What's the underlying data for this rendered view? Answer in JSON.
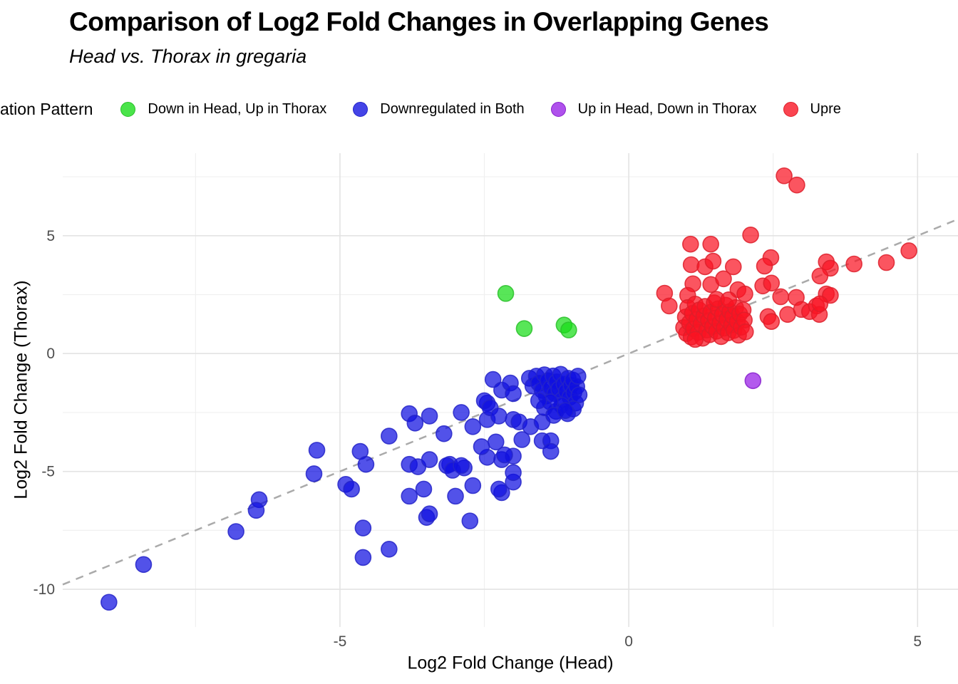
{
  "title": "Comparison of Log2 Fold Changes in Overlapping Genes",
  "subtitle": "Head vs. Thorax in gregaria",
  "legend": {
    "title": "ation Pattern",
    "items": [
      {
        "label": "Down in Head, Up in Thorax",
        "color": "#4ae44a",
        "stroke": "#2abf2a"
      },
      {
        "label": "Downregulated in Both",
        "color": "#4444e7",
        "stroke": "#2525c8"
      },
      {
        "label": "Up in Head, Down in Thorax",
        "color": "#af51ec",
        "stroke": "#8822cc"
      },
      {
        "label": "Upre",
        "color": "#fa4450",
        "stroke": "#dd1f2a"
      }
    ]
  },
  "chart_data": {
    "type": "scatter",
    "title": "Comparison of Log2 Fold Changes in Overlapping Genes",
    "subtitle": "Head vs. Thorax in gregaria",
    "xlabel": "Log2 Fold Change (Head)",
    "ylabel": "Log2 Fold Change (Thorax)",
    "xlim": [
      -9.8,
      5.7
    ],
    "ylim": [
      -11.6,
      8.5
    ],
    "x_ticks": [
      -5,
      0,
      5
    ],
    "y_ticks": [
      5,
      0,
      -5,
      -10
    ],
    "x_minor_ticks": [
      -7.5,
      -2.5,
      2.5
    ],
    "y_minor_ticks": [
      7.5,
      2.5,
      -2.5,
      -7.5
    ],
    "grid": {
      "major_color": "#e3e3e3",
      "minor_color": "#f0f0f0"
    },
    "abline": {
      "slope": 1,
      "intercept": 0,
      "color": "#aaaaaa",
      "dash": "11 9",
      "width": 2.5
    },
    "point_radius": 11,
    "legend_position": "top",
    "series": [
      {
        "name": "Down in Head, Up in Thorax",
        "color": "#17dd17",
        "stroke": "#2abf2a",
        "opacity": 0.72,
        "points": [
          [
            -2.13,
            2.55
          ],
          [
            -1.81,
            1.06
          ],
          [
            -1.12,
            1.21
          ],
          [
            -1.04,
            1.0
          ]
        ]
      },
      {
        "name": "Downregulated in Both",
        "color": "#0f0fe0",
        "stroke": "#2525c8",
        "opacity": 0.72,
        "points": [
          [
            -9.0,
            -10.55
          ],
          [
            -8.4,
            -8.95
          ],
          [
            -6.8,
            -7.55
          ],
          [
            -6.4,
            -6.2
          ],
          [
            -6.45,
            -6.65
          ],
          [
            -5.4,
            -4.1
          ],
          [
            -5.45,
            -5.1
          ],
          [
            -4.65,
            -4.15
          ],
          [
            -4.55,
            -4.7
          ],
          [
            -4.9,
            -5.55
          ],
          [
            -4.8,
            -5.75
          ],
          [
            -4.6,
            -7.4
          ],
          [
            -4.6,
            -8.65
          ],
          [
            -4.15,
            -8.3
          ],
          [
            -4.15,
            -3.5
          ],
          [
            -3.8,
            -2.55
          ],
          [
            -3.7,
            -2.95
          ],
          [
            -3.45,
            -2.65
          ],
          [
            -3.2,
            -3.4
          ],
          [
            -3.8,
            -6.05
          ],
          [
            -3.55,
            -5.75
          ],
          [
            -3.5,
            -6.95
          ],
          [
            -3.45,
            -6.8
          ],
          [
            -3.0,
            -6.05
          ],
          [
            -2.7,
            -5.6
          ],
          [
            -2.75,
            -7.1
          ],
          [
            -3.1,
            -4.7
          ],
          [
            -2.85,
            -4.85
          ],
          [
            -3.8,
            -4.7
          ],
          [
            -3.65,
            -4.8
          ],
          [
            -3.45,
            -4.5
          ],
          [
            -3.15,
            -4.75
          ],
          [
            -3.05,
            -4.95
          ],
          [
            -2.9,
            -4.75
          ],
          [
            -2.45,
            -4.4
          ],
          [
            -2.2,
            -4.5
          ],
          [
            -2.0,
            -4.35
          ],
          [
            -2.15,
            -4.3
          ],
          [
            -2.2,
            -5.9
          ],
          [
            -2.0,
            -5.45
          ],
          [
            -2.0,
            -5.05
          ],
          [
            -2.25,
            -5.75
          ],
          [
            -2.35,
            -1.1
          ],
          [
            -2.2,
            -1.55
          ],
          [
            -2.05,
            -1.25
          ],
          [
            -2.0,
            -1.7
          ],
          [
            -2.45,
            -2.1
          ],
          [
            -2.5,
            -2.0
          ],
          [
            -2.45,
            -2.8
          ],
          [
            -2.4,
            -2.3
          ],
          [
            -2.9,
            -2.5
          ],
          [
            -2.7,
            -3.1
          ],
          [
            -2.25,
            -2.65
          ],
          [
            -2.0,
            -2.8
          ],
          [
            -1.9,
            -2.9
          ],
          [
            -1.7,
            -3.1
          ],
          [
            -1.5,
            -2.9
          ],
          [
            -2.55,
            -3.95
          ],
          [
            -2.3,
            -3.75
          ],
          [
            -1.85,
            -3.65
          ],
          [
            -1.5,
            -3.7
          ],
          [
            -1.35,
            -3.7
          ],
          [
            -1.35,
            -4.15
          ],
          [
            -1.72,
            -1.05
          ],
          [
            -1.66,
            -1.38
          ],
          [
            -1.6,
            -0.96
          ],
          [
            -1.56,
            -1.26
          ],
          [
            -1.5,
            -1.56
          ],
          [
            -1.46,
            -0.9
          ],
          [
            -1.43,
            -1.8
          ],
          [
            -1.4,
            -1.15
          ],
          [
            -1.35,
            -1.45
          ],
          [
            -1.31,
            -0.95
          ],
          [
            -1.28,
            -1.7
          ],
          [
            -1.25,
            -1.2
          ],
          [
            -1.21,
            -1.5
          ],
          [
            -1.18,
            -0.88
          ],
          [
            -1.15,
            -1.95
          ],
          [
            -1.12,
            -1.3
          ],
          [
            -1.08,
            -1.6
          ],
          [
            -1.05,
            -1.05
          ],
          [
            -1.02,
            -1.85
          ],
          [
            -1.0,
            -1.35
          ],
          [
            -0.97,
            -1.12
          ],
          [
            -0.95,
            -1.65
          ],
          [
            -0.92,
            -2.1
          ],
          [
            -0.9,
            -1.4
          ],
          [
            -0.88,
            -0.96
          ],
          [
            -0.86,
            -1.75
          ],
          [
            -0.96,
            -2.35
          ],
          [
            -1.06,
            -2.55
          ],
          [
            -1.16,
            -2.2
          ],
          [
            -1.26,
            -2.45
          ],
          [
            -1.36,
            -2.05
          ],
          [
            -1.46,
            -2.3
          ],
          [
            -1.56,
            -2.0
          ],
          [
            -1.3,
            -2.62
          ],
          [
            -1.1,
            -2.42
          ]
        ]
      },
      {
        "name": "Up in Head, Down in Thorax",
        "color": "#9d2be8",
        "stroke": "#8822cc",
        "opacity": 0.78,
        "points": [
          [
            2.15,
            -1.15
          ]
        ]
      },
      {
        "name": "Upregulated in Both",
        "color": "#fa1423",
        "stroke": "#dd1f2a",
        "opacity": 0.72,
        "points": [
          [
            2.69,
            7.54
          ],
          [
            2.91,
            7.15
          ],
          [
            1.07,
            4.64
          ],
          [
            1.42,
            4.64
          ],
          [
            2.11,
            5.03
          ],
          [
            2.46,
            4.07
          ],
          [
            2.35,
            3.71
          ],
          [
            1.08,
            3.77
          ],
          [
            1.32,
            3.68
          ],
          [
            1.46,
            3.92
          ],
          [
            1.81,
            3.68
          ],
          [
            1.11,
            2.96
          ],
          [
            1.42,
            2.93
          ],
          [
            1.64,
            3.17
          ],
          [
            1.89,
            2.71
          ],
          [
            2.01,
            2.53
          ],
          [
            1.02,
            2.47
          ],
          [
            0.62,
            2.56
          ],
          [
            0.7,
            2.02
          ],
          [
            2.32,
            2.87
          ],
          [
            2.47,
            2.99
          ],
          [
            2.63,
            2.41
          ],
          [
            2.9,
            2.38
          ],
          [
            2.41,
            1.57
          ],
          [
            2.47,
            1.36
          ],
          [
            2.75,
            1.66
          ],
          [
            2.99,
            1.87
          ],
          [
            3.13,
            1.78
          ],
          [
            3.25,
            2.02
          ],
          [
            3.3,
            1.66
          ],
          [
            3.42,
            2.53
          ],
          [
            3.49,
            2.47
          ],
          [
            3.31,
            2.11
          ],
          [
            3.42,
            3.89
          ],
          [
            3.49,
            3.62
          ],
          [
            3.31,
            3.29
          ],
          [
            3.9,
            3.8
          ],
          [
            4.46,
            3.86
          ],
          [
            4.85,
            4.36
          ],
          [
            0.95,
            1.1
          ],
          [
            0.98,
            1.55
          ],
          [
            1.0,
            0.85
          ],
          [
            1.02,
            1.95
          ],
          [
            1.05,
            1.3
          ],
          [
            1.08,
            0.7
          ],
          [
            1.1,
            1.7
          ],
          [
            1.12,
            1.05
          ],
          [
            1.15,
            2.1
          ],
          [
            1.18,
            1.45
          ],
          [
            1.2,
            0.9
          ],
          [
            1.22,
            1.85
          ],
          [
            1.25,
            1.25
          ],
          [
            1.28,
            0.65
          ],
          [
            1.3,
            1.6
          ],
          [
            1.32,
            2.0
          ],
          [
            1.35,
            1.0
          ],
          [
            1.38,
            1.4
          ],
          [
            1.4,
            0.8
          ],
          [
            1.42,
            1.75
          ],
          [
            1.45,
            1.15
          ],
          [
            1.48,
            2.15
          ],
          [
            1.5,
            1.5
          ],
          [
            1.52,
            0.95
          ],
          [
            1.55,
            1.9
          ],
          [
            1.58,
            1.3
          ],
          [
            1.6,
            0.72
          ],
          [
            1.62,
            1.65
          ],
          [
            1.65,
            1.08
          ],
          [
            1.68,
            2.05
          ],
          [
            1.7,
            1.45
          ],
          [
            1.72,
            0.88
          ],
          [
            1.75,
            1.78
          ],
          [
            1.78,
            1.22
          ],
          [
            1.8,
            1.58
          ],
          [
            1.82,
            0.98
          ],
          [
            1.85,
            1.95
          ],
          [
            1.88,
            1.35
          ],
          [
            1.9,
            0.78
          ],
          [
            1.92,
            1.68
          ],
          [
            1.95,
            1.12
          ],
          [
            1.98,
            1.85
          ],
          [
            2.0,
            1.42
          ],
          [
            2.02,
            0.92
          ],
          [
            1.52,
            2.3
          ],
          [
            1.15,
            0.6
          ],
          [
            1.73,
            2.28
          ]
        ]
      }
    ],
    "axis_text_color": "#4d4d4d"
  }
}
